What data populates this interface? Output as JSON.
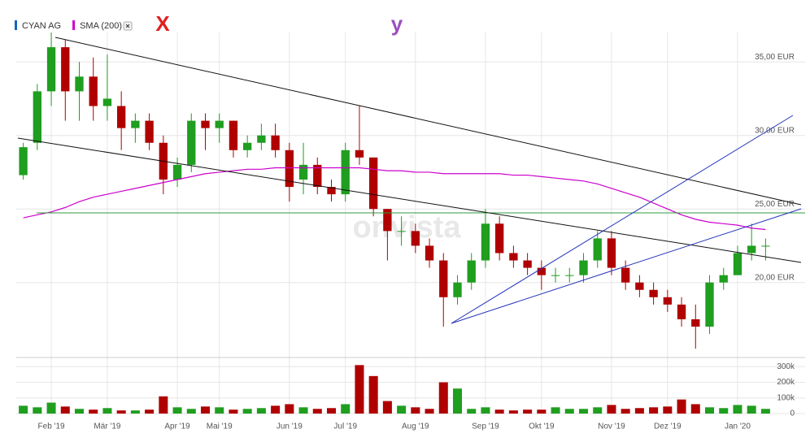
{
  "chart_data": {
    "type": "candlestick",
    "annotations": [
      "X",
      "y"
    ],
    "watermark": "onvista",
    "up_color": "#1f9e1f",
    "down_color": "#b00000",
    "grid": true,
    "categories": [
      null,
      null,
      "Feb '19",
      null,
      null,
      null,
      "Mär '19",
      null,
      null,
      null,
      null,
      "Apr '19",
      null,
      null,
      "Mai '19",
      null,
      null,
      null,
      null,
      "Jun '19",
      null,
      null,
      null,
      "Jul '19",
      null,
      null,
      null,
      null,
      "Aug '19",
      null,
      null,
      null,
      null,
      "Sep '19",
      null,
      null,
      null,
      "Okt '19",
      null,
      null,
      null,
      null,
      "Nov '19",
      null,
      null,
      null,
      "Dez '19",
      null,
      null,
      null,
      null,
      "Jan '20",
      null,
      null
    ],
    "series": [
      {
        "name": "CYAN AG",
        "color": "#1565c0",
        "open": [
          27.3,
          29.5,
          33,
          36,
          33,
          34,
          32,
          32,
          30.5,
          31,
          29.5,
          27,
          28,
          31,
          30.5,
          31,
          29,
          29.5,
          30,
          29,
          27,
          28,
          26.5,
          26,
          29,
          28.5,
          25,
          23.5,
          23.5,
          22.5,
          21.5,
          19,
          20,
          21.5,
          24,
          22,
          21.5,
          21,
          20.5,
          20.5,
          20.5,
          21.5,
          23,
          21,
          20,
          19.5,
          19,
          18.5,
          17.5,
          17,
          20,
          20.5,
          22,
          22.5
        ],
        "high": [
          29.5,
          33.5,
          37,
          36.5,
          35,
          35.3,
          35.5,
          33,
          31.5,
          31.5,
          30,
          28.5,
          31.5,
          31.5,
          31.5,
          31,
          30,
          30.8,
          30.8,
          29.5,
          29.5,
          28.5,
          27,
          29.5,
          32,
          28.5,
          25,
          24.5,
          24,
          23,
          22,
          20.5,
          22,
          25,
          24.5,
          22.5,
          22,
          21.5,
          21,
          21,
          22,
          23.5,
          23.5,
          21.5,
          20.5,
          20,
          19.5,
          19,
          18.5,
          20.5,
          21,
          22.5,
          24,
          23
        ],
        "low": [
          27,
          29,
          32,
          31,
          31,
          31,
          31,
          29,
          29.5,
          29,
          26,
          26.5,
          27.5,
          29,
          29.5,
          28.5,
          28.5,
          29,
          28.5,
          25.5,
          26,
          26,
          25.5,
          25.5,
          28,
          24.5,
          21.5,
          22.5,
          22,
          21,
          17,
          18.5,
          19.5,
          21,
          21.5,
          21,
          20.5,
          19.5,
          20,
          20,
          20,
          21,
          20.5,
          19.5,
          19,
          18.5,
          18,
          17,
          15.5,
          16.5,
          19.5,
          20.5,
          21.5,
          21.5
        ],
        "close": [
          29.2,
          33,
          36,
          33,
          34,
          32,
          32.5,
          30.5,
          31,
          29.5,
          27,
          28,
          31,
          30.5,
          31,
          29,
          29.5,
          30,
          29,
          26.5,
          28,
          26.5,
          26,
          29,
          28.5,
          25,
          23.5,
          23.5,
          22.5,
          21.5,
          19,
          20,
          21.5,
          24,
          22,
          21.5,
          21,
          20.5,
          20.5,
          20.5,
          21.5,
          23,
          21,
          20,
          19.5,
          19,
          18.5,
          17.5,
          17,
          20,
          20.5,
          22,
          22.5,
          22.5
        ]
      },
      {
        "name": "SMA (200)",
        "color": "#cc00cc",
        "values": [
          24.4,
          24.6,
          24.8,
          25.1,
          25.5,
          25.8,
          26.0,
          26.2,
          26.4,
          26.6,
          26.8,
          27.0,
          27.2,
          27.4,
          27.5,
          27.6,
          27.7,
          27.7,
          27.8,
          27.8,
          27.8,
          27.8,
          27.8,
          27.8,
          27.8,
          27.7,
          27.6,
          27.6,
          27.5,
          27.5,
          27.4,
          27.4,
          27.4,
          27.4,
          27.4,
          27.3,
          27.3,
          27.2,
          27.1,
          27.0,
          26.9,
          26.7,
          26.4,
          26.1,
          25.8,
          25.4,
          25.0,
          24.6,
          24.3,
          24.1,
          24.0,
          23.9,
          23.7,
          23.6
        ]
      }
    ],
    "ylim": [
      14.9,
      37.0
    ],
    "yticks": [
      {
        "value": 20,
        "label": "20,00 EUR"
      },
      {
        "value": 25,
        "label": "25,00 EUR"
      },
      {
        "value": 30,
        "label": "30,00 EUR"
      },
      {
        "value": 35,
        "label": "35,00 EUR"
      }
    ],
    "volume": {
      "values": [
        50000,
        40000,
        70000,
        45000,
        30000,
        25000,
        35000,
        20000,
        20000,
        25000,
        110000,
        40000,
        30000,
        45000,
        40000,
        25000,
        30000,
        35000,
        50000,
        60000,
        40000,
        30000,
        35000,
        60000,
        310000,
        240000,
        80000,
        50000,
        40000,
        30000,
        200000,
        160000,
        30000,
        40000,
        25000,
        20000,
        25000,
        25000,
        40000,
        30000,
        30000,
        40000,
        55000,
        30000,
        35000,
        40000,
        45000,
        90000,
        60000,
        40000,
        35000,
        55000,
        50000,
        30000
      ],
      "ylim": [
        0,
        317000
      ],
      "yticks": [
        0,
        {
          "value": 100000,
          "label": "100k"
        },
        {
          "value": 200000,
          "label": "200k"
        },
        {
          "value": 300000,
          "label": "300k"
        }
      ]
    }
  }
}
